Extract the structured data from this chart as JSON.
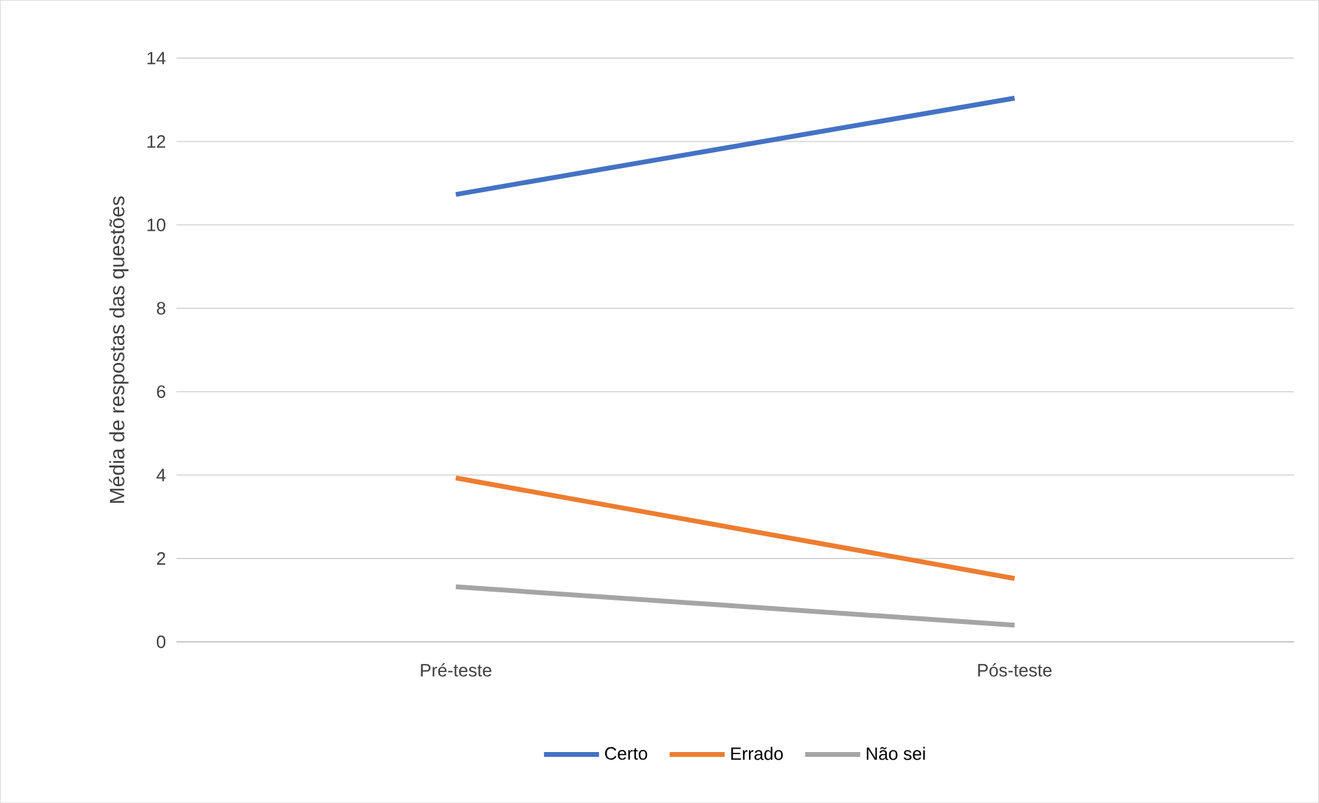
{
  "chart_data": {
    "type": "line",
    "ylabel": "Média de respostas das questões",
    "categories": [
      "Pré-teste",
      "Pós-teste"
    ],
    "series": [
      {
        "name": "Certo",
        "color": "#4472c4",
        "values": [
          10.73,
          13.04
        ]
      },
      {
        "name": "Errado",
        "color": "#ed7d31",
        "values": [
          3.93,
          1.52
        ]
      },
      {
        "name": "Não sei",
        "color": "#a5a5a5",
        "values": [
          1.32,
          0.4
        ]
      }
    ],
    "ylim": [
      0,
      14
    ],
    "yticks": [
      0,
      2,
      4,
      6,
      8,
      10,
      12,
      14
    ],
    "grid": "y",
    "legend": "bottom",
    "marker": "none",
    "line_style": "solid"
  }
}
